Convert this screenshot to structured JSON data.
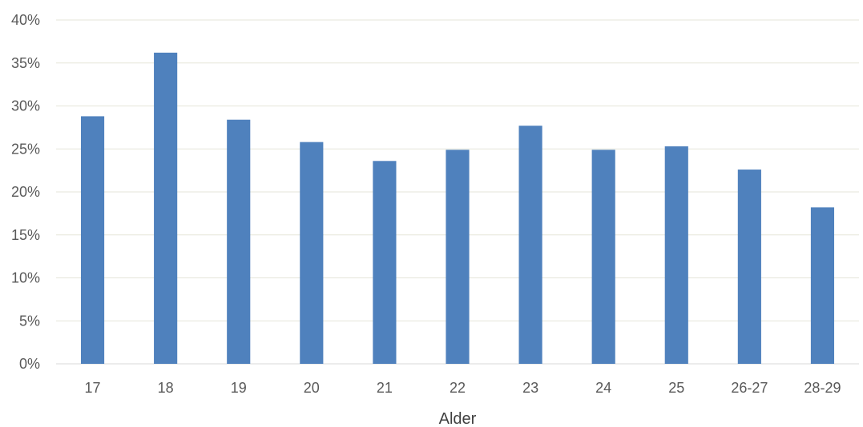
{
  "chart_data": {
    "type": "bar",
    "title": "",
    "xlabel": "Alder",
    "ylabel": "",
    "categories": [
      "17",
      "18",
      "19",
      "20",
      "21",
      "22",
      "23",
      "24",
      "25",
      "26-27",
      "28-29"
    ],
    "values": [
      28.8,
      36.2,
      28.4,
      25.8,
      23.6,
      24.9,
      27.7,
      24.9,
      25.3,
      22.6,
      18.2
    ],
    "ylim": [
      0,
      40
    ],
    "yticks": [
      0,
      5,
      10,
      15,
      20,
      25,
      30,
      35,
      40
    ],
    "ytick_format": "percent",
    "grid": true,
    "legend": "none",
    "colors": {
      "bar": "#4F81BD",
      "grid": "#E5E5D9",
      "axis": "#D9D9D9",
      "text": "#595959"
    }
  }
}
